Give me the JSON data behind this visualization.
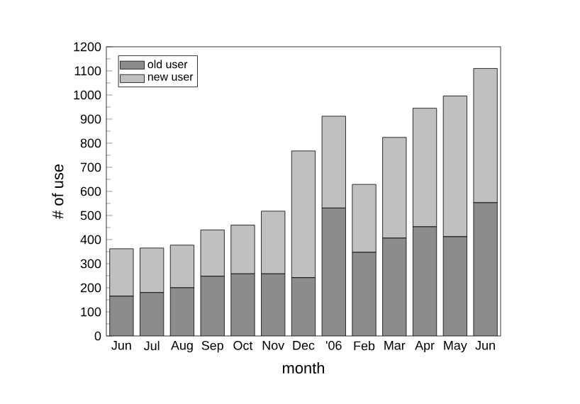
{
  "chart_data": {
    "type": "bar",
    "stacked": true,
    "xlabel": "month",
    "ylabel": "# of use",
    "categories": [
      "Jun",
      "Jul",
      "Aug",
      "Sep",
      "Oct",
      "Nov",
      "Dec",
      "'06",
      "Feb",
      "Mar",
      "Apr",
      "May",
      "Jun"
    ],
    "series": [
      {
        "name": "old user",
        "color": "#8c8c8c",
        "values": [
          165,
          180,
          200,
          248,
          258,
          258,
          242,
          531,
          347,
          406,
          453,
          412,
          553
        ]
      },
      {
        "name": "new user",
        "color": "#c0c0c0",
        "values": [
          197,
          185,
          177,
          192,
          202,
          260,
          526,
          381,
          282,
          418,
          492,
          584,
          557
        ]
      }
    ],
    "ylim": [
      0,
      1200
    ],
    "yticks": [
      0,
      100,
      200,
      300,
      400,
      500,
      600,
      700,
      800,
      900,
      1000,
      1100,
      1200
    ],
    "legend": "top left"
  }
}
